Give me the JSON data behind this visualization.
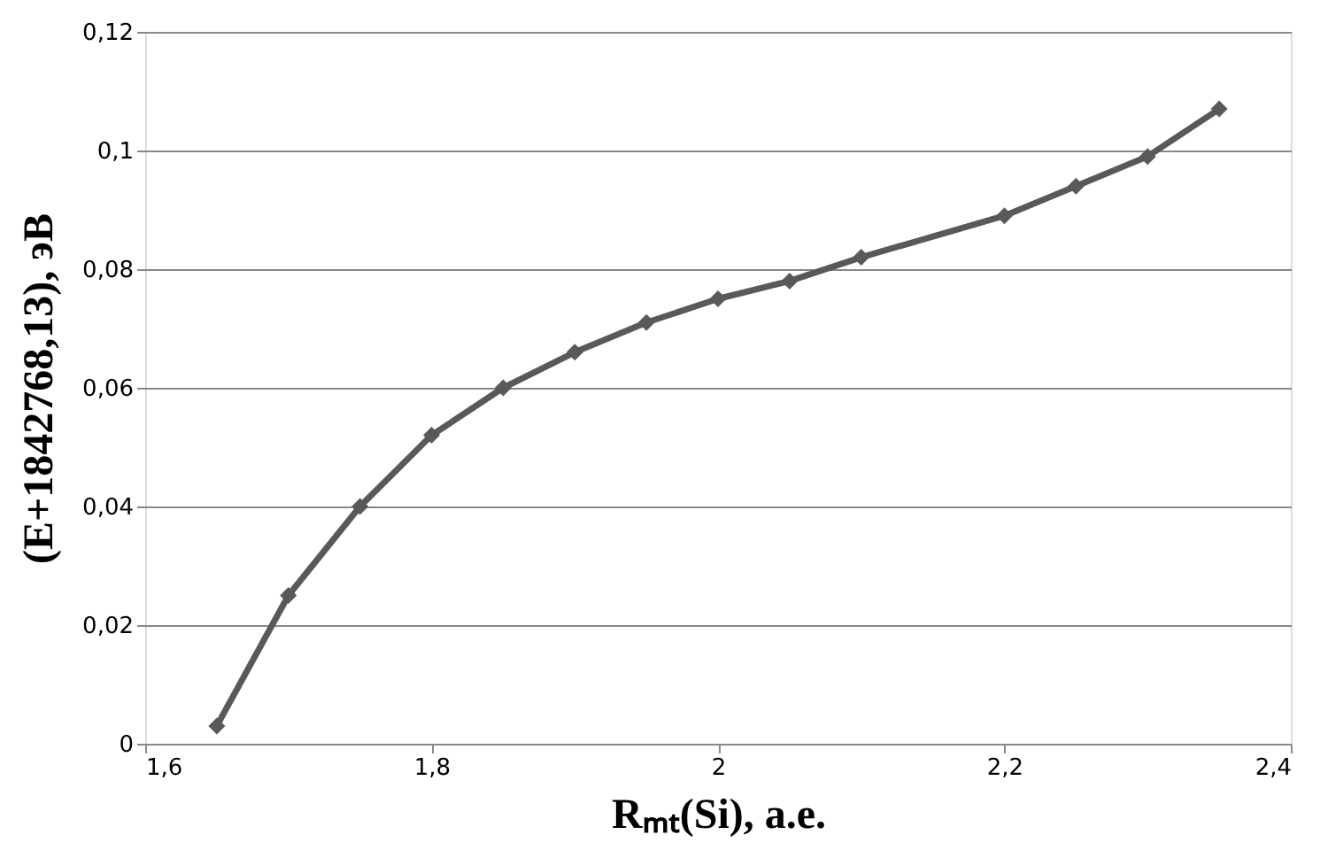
{
  "chart_data": {
    "type": "line",
    "xlabel": "Rₘₜ(Si), a.e.",
    "ylabel": "(E+1842768,13), эВ",
    "x": [
      1.65,
      1.7,
      1.75,
      1.8,
      1.85,
      1.9,
      1.95,
      2.0,
      2.05,
      2.1,
      2.2,
      2.25,
      2.3,
      2.35
    ],
    "series": [
      {
        "color": "#595959",
        "values": [
          0.003,
          0.025,
          0.04,
          0.052,
          0.06,
          0.066,
          0.071,
          0.075,
          0.078,
          0.082,
          0.089,
          0.094,
          0.099,
          0.107
        ]
      }
    ],
    "xlim": [
      1.6,
      2.4
    ],
    "xticks": [
      {
        "value": 1.6,
        "label": "1,6"
      },
      {
        "value": 1.8,
        "label": "1,8"
      },
      2,
      {
        "value": 2.2,
        "label": "2,2"
      },
      {
        "value": 2.4,
        "label": "2,4"
      }
    ],
    "ylim": [
      0,
      0.12
    ],
    "yticks": [
      0,
      {
        "value": 0.02,
        "label": "0,02"
      },
      {
        "value": 0.04,
        "label": "0,04"
      },
      {
        "value": 0.06,
        "label": "0,06"
      },
      {
        "value": 0.08,
        "label": "0,08"
      },
      {
        "value": 0.1,
        "label": "0,1"
      },
      {
        "value": 0.12,
        "label": "0,12"
      }
    ],
    "grid": "y",
    "marker": "diamond",
    "line_style": "solid"
  }
}
